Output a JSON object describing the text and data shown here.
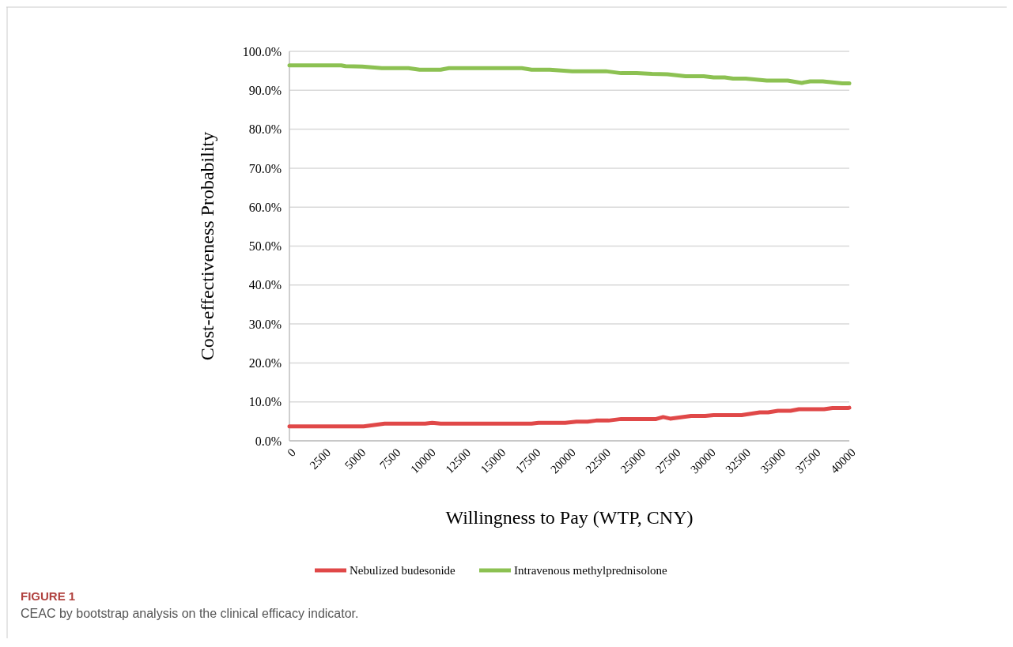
{
  "chart_data": {
    "type": "line",
    "xlabel": "Willingness to Pay (WTP, CNY)",
    "ylabel": "Cost-effectiveness Probability",
    "xlim": [
      0,
      40000
    ],
    "xticks": [
      0,
      2500,
      5000,
      7500,
      10000,
      12500,
      15000,
      17500,
      20000,
      22500,
      25000,
      27500,
      30000,
      32500,
      35000,
      37500,
      40000
    ],
    "ylim": [
      0,
      100
    ],
    "yticks": [
      {
        "value": 0,
        "label": "0.0%"
      },
      {
        "value": 10,
        "label": "10.0%"
      },
      {
        "value": 20,
        "label": "20.0%"
      },
      {
        "value": 30,
        "label": "30.0%"
      },
      {
        "value": 40,
        "label": "40.0%"
      },
      {
        "value": 50,
        "label": "50.0%"
      },
      {
        "value": 60,
        "label": "60.0%"
      },
      {
        "value": 70,
        "label": "70.0%"
      },
      {
        "value": 80,
        "label": "80.0%"
      },
      {
        "value": 90,
        "label": "90.0%"
      },
      {
        "value": 100,
        "label": "100.0%"
      }
    ],
    "grid": "y",
    "legend": "bottom",
    "marker": "none",
    "line_style": "solid",
    "series": [
      {
        "name": "Nebulized budesonide",
        "color": "#e04848",
        "x": [
          0,
          5300,
          6800,
          9700,
          10200,
          10800,
          17300,
          17800,
          19700,
          20500,
          21300,
          21900,
          22800,
          23700,
          26200,
          26700,
          27200,
          28700,
          29700,
          30300,
          32300,
          33600,
          34200,
          34900,
          35800,
          36400,
          38200,
          38800,
          39900,
          40000
        ],
        "values": [
          3.7,
          3.7,
          4.4,
          4.4,
          4.6,
          4.4,
          4.4,
          4.6,
          4.6,
          4.9,
          4.9,
          5.2,
          5.2,
          5.6,
          5.6,
          6.1,
          5.7,
          6.4,
          6.4,
          6.6,
          6.6,
          7.3,
          7.3,
          7.7,
          7.7,
          8.1,
          8.1,
          8.4,
          8.4,
          8.5
        ]
      },
      {
        "name": "Intravenous methylprednisolone",
        "color": "#8cc152",
        "x": [
          0,
          3700,
          4000,
          5200,
          6600,
          8500,
          9300,
          10800,
          11400,
          16600,
          17300,
          18600,
          20200,
          22600,
          23700,
          24800,
          25900,
          27000,
          28300,
          29600,
          30300,
          31100,
          31700,
          32600,
          34100,
          35600,
          36600,
          37200,
          38100,
          39500,
          40000
        ],
        "values": [
          96.4,
          96.4,
          96.2,
          96.1,
          95.7,
          95.7,
          95.3,
          95.3,
          95.7,
          95.7,
          95.3,
          95.3,
          94.9,
          94.9,
          94.4,
          94.4,
          94.2,
          94.1,
          93.6,
          93.6,
          93.3,
          93.3,
          93.0,
          93.0,
          92.5,
          92.5,
          91.9,
          92.3,
          92.3,
          91.8,
          91.8
        ]
      }
    ],
    "annotations": [
      "FIGURE 1",
      "CEAC by bootstrap analysis on the clinical efficacy indicator."
    ]
  }
}
